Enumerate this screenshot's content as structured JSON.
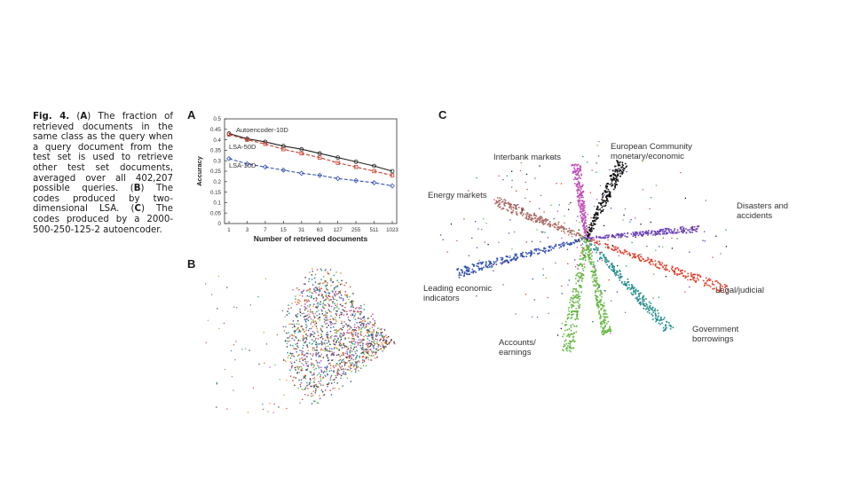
{
  "caption": {
    "label": "Fig. 4.",
    "parts": [
      {
        "bold": false,
        "text": " ("
      },
      {
        "bold": true,
        "text": "A"
      },
      {
        "bold": false,
        "text": ") The fraction of retrieved documents in the same class as the query when a query document from the test set is used to retrieve other test set documents, averaged over all 402,207 possible queries. ("
      },
      {
        "bold": true,
        "text": "B"
      },
      {
        "bold": false,
        "text": ") The codes produced by two-dimensional LSA. ("
      },
      {
        "bold": true,
        "text": "C"
      },
      {
        "bold": false,
        "text": ") The codes produced by a 2000-500-250-125-2 autoencoder."
      }
    ]
  },
  "panels": {
    "a": "A",
    "b": "B",
    "c": "C"
  },
  "chart_data": {
    "type": "line",
    "title": "",
    "xlabel": "Number of retrieved documents",
    "ylabel": "Accuracy",
    "x_scale": "log2",
    "categories": [
      "1",
      "3",
      "7",
      "15",
      "31",
      "63",
      "127",
      "255",
      "511",
      "1023"
    ],
    "ylim": [
      0,
      0.5
    ],
    "yticks": [
      "0",
      "0.05",
      "0.1",
      "0.15",
      "0.2",
      "0.25",
      "0.3",
      "0.35",
      "0.4",
      "0.45",
      "0.5"
    ],
    "series": [
      {
        "name": "Autoencoder-10D",
        "color": "#222222",
        "dash": false,
        "marker": "circle",
        "values": [
          0.43,
          0.405,
          0.39,
          0.37,
          0.355,
          0.335,
          0.315,
          0.295,
          0.275,
          0.25
        ]
      },
      {
        "name": "LSA-50D",
        "color": "#cc3b2b",
        "dash": true,
        "marker": "square",
        "values": [
          0.425,
          0.4,
          0.38,
          0.355,
          0.335,
          0.315,
          0.29,
          0.27,
          0.25,
          0.23
        ]
      },
      {
        "name": "LSA-10D",
        "color": "#3a55b5",
        "dash": true,
        "marker": "diamond",
        "values": [
          0.31,
          0.285,
          0.27,
          0.255,
          0.24,
          0.23,
          0.215,
          0.205,
          0.195,
          0.18
        ]
      }
    ]
  },
  "cluster_labels": [
    {
      "key": "european",
      "text": "European Community\nmonetary/economic"
    },
    {
      "key": "interbank",
      "text": "Interbank markets"
    },
    {
      "key": "energy",
      "text": "Energy markets"
    },
    {
      "key": "disasters",
      "text": "Disasters and\naccidents"
    },
    {
      "key": "leading",
      "text": "Leading economic\nindicators"
    },
    {
      "key": "legal",
      "text": "Legal/judicial"
    },
    {
      "key": "accounts",
      "text": "Accounts/\nearnings"
    },
    {
      "key": "government",
      "text": "Government\nborrowings"
    }
  ],
  "cluster_colors": {
    "european": "#111111",
    "interbank": "#c24fb8",
    "energy": "#a86a62",
    "disasters": "#6a3fb8",
    "leading": "#2f4fb0",
    "legal": "#e0402a",
    "accounts": "#66b844",
    "government": "#1f8c8c"
  }
}
